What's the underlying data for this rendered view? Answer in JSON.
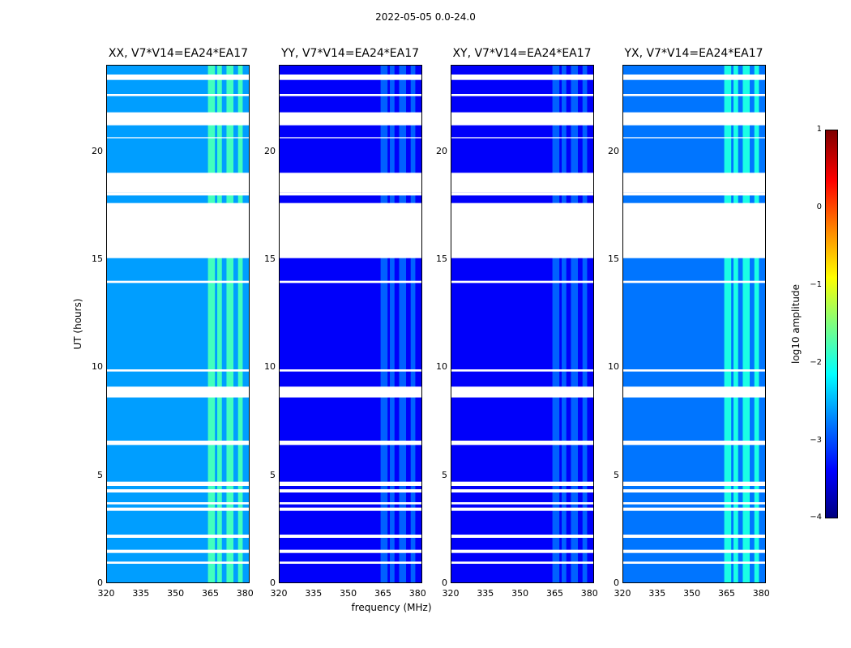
{
  "suptitle": "2022-05-05 0.0-24.0",
  "chart_data": {
    "type": "heatmap",
    "title": "2022-05-05 0.0-24.0",
    "xlabel": "frequency (MHz)",
    "ylabel": "UT (hours)",
    "xlim": [
      320,
      382
    ],
    "ylim": [
      0,
      24
    ],
    "x_ticks": [
      "320",
      "335",
      "350",
      "365",
      "380"
    ],
    "y_ticks": [
      "0",
      "5",
      "10",
      "15",
      "20"
    ],
    "colorbar": {
      "label": "log10 amplitude",
      "range": [
        -4,
        1
      ],
      "ticks": [
        "1",
        "0",
        "−1",
        "−2",
        "−3",
        "−4"
      ]
    },
    "panels": [
      {
        "title": "XX, V7*V14=EA24*EA17",
        "base_level": -2.6,
        "rfi_level": -1.8
      },
      {
        "title": "YY, V7*V14=EA24*EA17",
        "base_level": -3.4,
        "rfi_level": -2.9
      },
      {
        "title": "XY, V7*V14=EA24*EA17",
        "base_level": -3.4,
        "rfi_level": -2.9
      },
      {
        "title": "YX, V7*V14=EA24*EA17",
        "base_level": -2.8,
        "rfi_level": -2.0
      }
    ],
    "flagged_ut_ranges": [
      [
        23.3,
        23.55
      ],
      [
        22.55,
        22.65
      ],
      [
        21.2,
        21.8
      ],
      [
        20.6,
        20.65
      ],
      [
        19.0,
        18.1
      ],
      [
        18.1,
        17.95
      ],
      [
        17.6,
        15.05
      ],
      [
        14.0,
        13.9
      ],
      [
        9.9,
        9.8
      ],
      [
        9.1,
        8.6
      ],
      [
        6.6,
        6.4
      ],
      [
        4.7,
        4.5
      ],
      [
        4.35,
        4.2
      ],
      [
        3.75,
        3.65
      ],
      [
        3.5,
        3.35
      ],
      [
        2.25,
        2.1
      ],
      [
        1.55,
        1.4
      ],
      [
        1.0,
        0.9
      ]
    ],
    "rfi_freq_ranges_mhz": [
      [
        364,
        367
      ],
      [
        368,
        370
      ],
      [
        372,
        375
      ],
      [
        377,
        379
      ]
    ]
  }
}
